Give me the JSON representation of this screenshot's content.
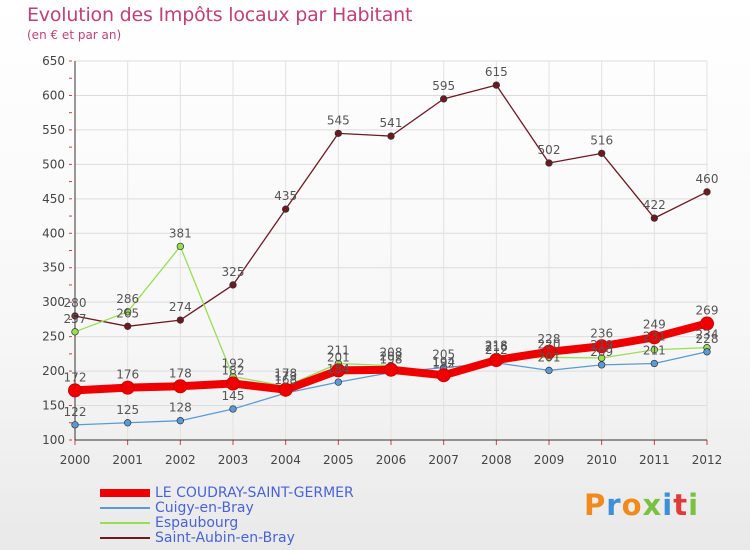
{
  "chart_data": {
    "type": "line",
    "title": "Evolution des Impôts locaux par Habitant",
    "subtitle": "(en € et par an)",
    "x": [
      "2000",
      "2001",
      "2002",
      "2003",
      "2004",
      "2005",
      "2006",
      "2007",
      "2008",
      "2009",
      "2010",
      "2011",
      "2012"
    ],
    "ylim": [
      100,
      650
    ],
    "yticks": [
      100,
      150,
      200,
      250,
      300,
      350,
      400,
      450,
      500,
      550,
      600,
      650
    ],
    "series": [
      {
        "name": "Saint-Aubin-en-Bray",
        "color": "#6b1a22",
        "values": [
          280,
          265,
          274,
          325,
          435,
          545,
          541,
          595,
          615,
          502,
          516,
          422,
          460
        ]
      },
      {
        "name": "Espaubourg",
        "color": "#99dd55",
        "values": [
          257,
          286,
          381,
          192,
          178,
          211,
          208,
          192,
          218,
          220,
          219,
          231,
          234
        ]
      },
      {
        "name": "Cuigy-en-Bray",
        "color": "#5b9bd5",
        "values": [
          122,
          125,
          128,
          145,
          168,
          184,
          198,
          205,
          212,
          201,
          209,
          211,
          228
        ]
      },
      {
        "name": "LE COUDRAY-SAINT-GERMER",
        "color": "#ee0000",
        "values": [
          172,
          176,
          178,
          182,
          173,
          201,
          202,
          194,
          216,
          228,
          236,
          249,
          269
        ]
      }
    ],
    "legend": [
      "LE COUDRAY-SAINT-GERMER",
      "Cuigy-en-Bray",
      "Espaubourg",
      "Saint-Aubin-en-Bray"
    ],
    "legend_position": "bottom-left"
  },
  "logo": {
    "text": "Proxiti",
    "colors": [
      "#f08a1c",
      "#3d8fd6",
      "#f08a1c",
      "#7ac142",
      "#3d8fd6",
      "#e03b3b",
      "#7ac142"
    ]
  }
}
